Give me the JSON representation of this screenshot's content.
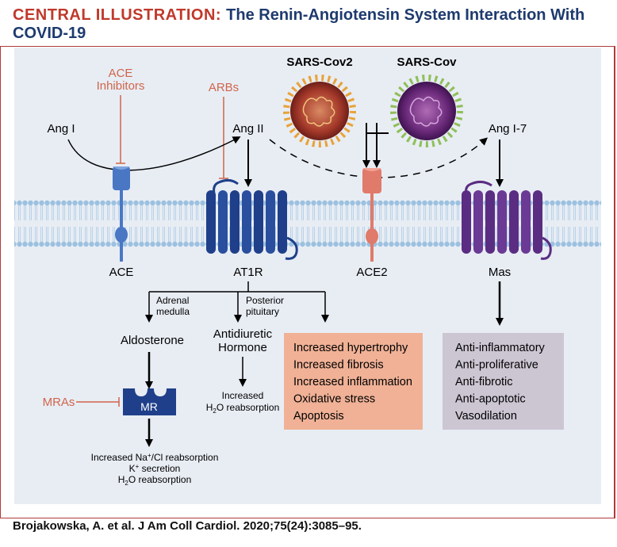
{
  "header": {
    "prefix": "CENTRAL ILLUSTRATION:",
    "title_line1": "The Renin-Angiotensin System Interaction With",
    "title_line2": "COVID-19"
  },
  "drugs": {
    "ace_inhibitors_1": "ACE",
    "ace_inhibitors_2": "Inhibitors",
    "arbs": "ARBs",
    "mras": "MRAs"
  },
  "viruses": {
    "sars_cov2": "SARS-Cov2",
    "sars_cov": "SARS-Cov"
  },
  "molecules": {
    "ang1": "Ang I",
    "ang2": "Ang II",
    "ang17": "Ang I-7"
  },
  "receptors": {
    "ace": "ACE",
    "at1r": "AT1R",
    "ace2": "ACE2",
    "mas": "Mas",
    "mr": "MR"
  },
  "branches": {
    "adrenal_1": "Adrenal",
    "adrenal_2": "medulla",
    "posterior_1": "Posterior",
    "posterior_2": "pituitary"
  },
  "outcomes": {
    "aldosterone": "Aldosterone",
    "adh_1": "Antidiuretic",
    "adh_2": "Hormone",
    "h2o_1": "Increased",
    "h2o_2_a": "H",
    "h2o_2_sub": "2",
    "h2o_2_b": "O reabsorption",
    "mr_out_1_a": "Increased Na",
    "mr_out_1_sup": "+",
    "mr_out_1_b": "/Cl reabsorption",
    "mr_out_2_a": "K",
    "mr_out_2_sup": "+",
    "mr_out_2_b": " secretion",
    "mr_out_3_a": "H",
    "mr_out_3_sub": "2",
    "mr_out_3_b": "O reabsorption"
  },
  "at1r_effects": [
    "Increased hypertrophy",
    "Increased fibrosis",
    "Increased inflammation",
    "Oxidative stress",
    "Apoptosis"
  ],
  "mas_effects": [
    "Anti-inflammatory",
    "Anti-proliferative",
    "Anti-fibrotic",
    "Anti-apoptotic",
    "Vasodilation"
  ],
  "footer": "Brojakowska, A. et al. J Am Coll Cardiol. 2020;75(24):3085–95.",
  "colors": {
    "header_red": "#c0392b",
    "header_blue": "#1e3a6e",
    "drug_orange": "#d0654a",
    "at1r_box": "#f0b196",
    "mas_box": "#ccc6d3",
    "ace_blue": "#4a77c4",
    "at1r_navy": "#1f3f8a",
    "ace2_salmon": "#e07a6a",
    "mas_purple": "#5a2d82"
  }
}
